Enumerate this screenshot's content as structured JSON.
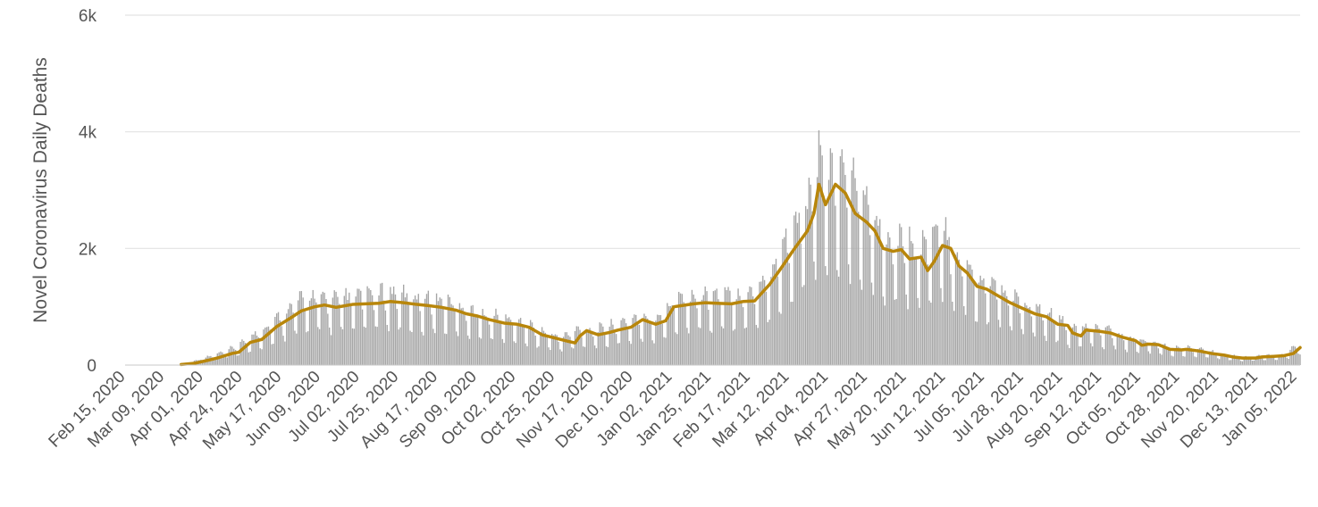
{
  "chart_data": {
    "type": "bar",
    "ylabel": "Novel Coronavirus Daily Deaths",
    "xlabel": "",
    "ylim": [
      0,
      6000
    ],
    "y_ticks": [
      {
        "value": 0,
        "label": "0"
      },
      {
        "value": 2000,
        "label": "2k"
      },
      {
        "value": 4000,
        "label": "4k"
      },
      {
        "value": 6000,
        "label": "6k"
      }
    ],
    "x_range": [
      "2020-02-15",
      "2022-01-28"
    ],
    "x_tick_labels": [
      "Feb 15, 2020",
      "Mar 09, 2020",
      "Apr 01, 2020",
      "Apr 24, 2020",
      "May 17, 2020",
      "Jun 09, 2020",
      "Jul 02, 2020",
      "Jul 25, 2020",
      "Aug 17, 2020",
      "Sep 09, 2020",
      "Oct 02, 2020",
      "Oct 25, 2020",
      "Nov 17, 2020",
      "Dec 10, 2020",
      "Jan 02, 2021",
      "Jan 25, 2021",
      "Feb 17, 2021",
      "Mar 12, 2021",
      "Apr 04, 2021",
      "Apr 27, 2021",
      "May 20, 2021",
      "Jun 12, 2021",
      "Jul 05, 2021",
      "Jul 28, 2021",
      "Aug 20, 2021",
      "Sep 12, 2021",
      "Oct 05, 2021",
      "Oct 28, 2021",
      "Nov 20, 2021",
      "Dec 13, 2021",
      "Jan 05, 2022"
    ],
    "grid": true,
    "legend": "none",
    "series": [
      {
        "kind": "bar",
        "color": "#a6a6a6",
        "points": [
          [
            "2020-03-20",
            15
          ],
          [
            "2020-04-01",
            90
          ],
          [
            "2020-04-15",
            200
          ],
          [
            "2020-04-24",
            300
          ],
          [
            "2020-05-05",
            480
          ],
          [
            "2020-05-17",
            700
          ],
          [
            "2020-05-28",
            950
          ],
          [
            "2020-06-09",
            1050
          ],
          [
            "2020-06-20",
            1000
          ],
          [
            "2020-07-02",
            1050
          ],
          [
            "2020-07-13",
            1080
          ],
          [
            "2020-07-25",
            1100
          ],
          [
            "2020-08-05",
            1050
          ],
          [
            "2020-08-17",
            1000
          ],
          [
            "2020-08-28",
            980
          ],
          [
            "2020-09-09",
            850
          ],
          [
            "2020-09-20",
            780
          ],
          [
            "2020-10-02",
            720
          ],
          [
            "2020-10-13",
            650
          ],
          [
            "2020-10-25",
            520
          ],
          [
            "2020-11-05",
            420
          ],
          [
            "2020-11-17",
            550
          ],
          [
            "2020-11-28",
            540
          ],
          [
            "2020-12-10",
            620
          ],
          [
            "2020-12-21",
            720
          ],
          [
            "2021-01-02",
            700
          ],
          [
            "2021-01-13",
            1000
          ],
          [
            "2021-01-25",
            1050
          ],
          [
            "2021-02-05",
            1070
          ],
          [
            "2021-02-17",
            1080
          ],
          [
            "2021-02-28",
            1100
          ],
          [
            "2021-03-12",
            1350
          ],
          [
            "2021-03-23",
            1900
          ],
          [
            "2021-04-04",
            2400
          ],
          [
            "2021-04-12",
            3100
          ],
          [
            "2021-04-18",
            2900
          ],
          [
            "2021-04-27",
            2900
          ],
          [
            "2021-05-08",
            2500
          ],
          [
            "2021-05-20",
            2000
          ],
          [
            "2021-05-31",
            1950
          ],
          [
            "2021-06-12",
            1800
          ],
          [
            "2021-06-23",
            2050
          ],
          [
            "2021-07-05",
            1650
          ],
          [
            "2021-07-16",
            1350
          ],
          [
            "2021-07-28",
            1200
          ],
          [
            "2021-08-08",
            1000
          ],
          [
            "2021-08-20",
            850
          ],
          [
            "2021-08-31",
            750
          ],
          [
            "2021-09-12",
            550
          ],
          [
            "2021-09-23",
            580
          ],
          [
            "2021-10-05",
            530
          ],
          [
            "2021-10-16",
            400
          ],
          [
            "2021-10-28",
            380
          ],
          [
            "2021-11-08",
            270
          ],
          [
            "2021-11-20",
            260
          ],
          [
            "2021-12-01",
            230
          ],
          [
            "2021-12-13",
            160
          ],
          [
            "2021-12-24",
            120
          ],
          [
            "2022-01-05",
            140
          ],
          [
            "2022-01-18",
            160
          ],
          [
            "2022-01-28",
            330
          ]
        ]
      },
      {
        "kind": "line",
        "color": "#b8860b",
        "points": [
          [
            "2020-03-20",
            10
          ],
          [
            "2020-03-28",
            30
          ],
          [
            "2020-04-05",
            80
          ],
          [
            "2020-04-12",
            130
          ],
          [
            "2020-04-20",
            200
          ],
          [
            "2020-04-24",
            220
          ],
          [
            "2020-05-01",
            390
          ],
          [
            "2020-05-08",
            440
          ],
          [
            "2020-05-17",
            660
          ],
          [
            "2020-05-25",
            800
          ],
          [
            "2020-06-01",
            930
          ],
          [
            "2020-06-09",
            1000
          ],
          [
            "2020-06-15",
            1030
          ],
          [
            "2020-06-22",
            990
          ],
          [
            "2020-07-02",
            1040
          ],
          [
            "2020-07-10",
            1050
          ],
          [
            "2020-07-18",
            1060
          ],
          [
            "2020-07-25",
            1090
          ],
          [
            "2020-08-02",
            1070
          ],
          [
            "2020-08-10",
            1040
          ],
          [
            "2020-08-17",
            1020
          ],
          [
            "2020-08-25",
            990
          ],
          [
            "2020-09-03",
            940
          ],
          [
            "2020-09-09",
            880
          ],
          [
            "2020-09-16",
            840
          ],
          [
            "2020-09-23",
            780
          ],
          [
            "2020-10-02",
            720
          ],
          [
            "2020-10-10",
            700
          ],
          [
            "2020-10-17",
            650
          ],
          [
            "2020-10-25",
            520
          ],
          [
            "2020-11-01",
            470
          ],
          [
            "2020-11-08",
            420
          ],
          [
            "2020-11-14",
            380
          ],
          [
            "2020-11-17",
            500
          ],
          [
            "2020-11-21",
            590
          ],
          [
            "2020-11-28",
            520
          ],
          [
            "2020-12-05",
            560
          ],
          [
            "2020-12-10",
            600
          ],
          [
            "2020-12-18",
            650
          ],
          [
            "2020-12-25",
            780
          ],
          [
            "2021-01-02",
            700
          ],
          [
            "2021-01-08",
            760
          ],
          [
            "2021-01-13",
            1000
          ],
          [
            "2021-01-20",
            1030
          ],
          [
            "2021-01-25",
            1050
          ],
          [
            "2021-02-01",
            1070
          ],
          [
            "2021-02-08",
            1060
          ],
          [
            "2021-02-17",
            1050
          ],
          [
            "2021-02-24",
            1090
          ],
          [
            "2021-03-03",
            1100
          ],
          [
            "2021-03-12",
            1380
          ],
          [
            "2021-03-20",
            1700
          ],
          [
            "2021-03-26",
            1950
          ],
          [
            "2021-04-04",
            2300
          ],
          [
            "2021-04-08",
            2600
          ],
          [
            "2021-04-11",
            3100
          ],
          [
            "2021-04-15",
            2750
          ],
          [
            "2021-04-21",
            3100
          ],
          [
            "2021-04-27",
            2950
          ],
          [
            "2021-05-03",
            2600
          ],
          [
            "2021-05-10",
            2450
          ],
          [
            "2021-05-15",
            2300
          ],
          [
            "2021-05-20",
            2000
          ],
          [
            "2021-05-26",
            1950
          ],
          [
            "2021-05-31",
            1980
          ],
          [
            "2021-06-05",
            1820
          ],
          [
            "2021-06-12",
            1850
          ],
          [
            "2021-06-16",
            1620
          ],
          [
            "2021-06-20",
            1780
          ],
          [
            "2021-06-25",
            2050
          ],
          [
            "2021-06-30",
            2000
          ],
          [
            "2021-07-05",
            1700
          ],
          [
            "2021-07-10",
            1580
          ],
          [
            "2021-07-16",
            1350
          ],
          [
            "2021-07-22",
            1300
          ],
          [
            "2021-07-28",
            1200
          ],
          [
            "2021-08-05",
            1070
          ],
          [
            "2021-08-12",
            980
          ],
          [
            "2021-08-20",
            880
          ],
          [
            "2021-08-27",
            830
          ],
          [
            "2021-09-03",
            700
          ],
          [
            "2021-09-09",
            680
          ],
          [
            "2021-09-12",
            550
          ],
          [
            "2021-09-17",
            500
          ],
          [
            "2021-09-20",
            600
          ],
          [
            "2021-09-28",
            580
          ],
          [
            "2021-10-05",
            550
          ],
          [
            "2021-10-12",
            480
          ],
          [
            "2021-10-20",
            420
          ],
          [
            "2021-10-24",
            340
          ],
          [
            "2021-10-28",
            360
          ],
          [
            "2021-11-03",
            350
          ],
          [
            "2021-11-10",
            270
          ],
          [
            "2021-11-17",
            260
          ],
          [
            "2021-11-20",
            270
          ],
          [
            "2021-11-28",
            240
          ],
          [
            "2021-12-05",
            200
          ],
          [
            "2021-12-13",
            170
          ],
          [
            "2021-12-18",
            140
          ],
          [
            "2021-12-24",
            120
          ],
          [
            "2022-01-01",
            120
          ],
          [
            "2022-01-05",
            140
          ],
          [
            "2022-01-12",
            150
          ],
          [
            "2022-01-18",
            160
          ],
          [
            "2022-01-24",
            200
          ],
          [
            "2022-01-28",
            300
          ]
        ]
      }
    ]
  }
}
